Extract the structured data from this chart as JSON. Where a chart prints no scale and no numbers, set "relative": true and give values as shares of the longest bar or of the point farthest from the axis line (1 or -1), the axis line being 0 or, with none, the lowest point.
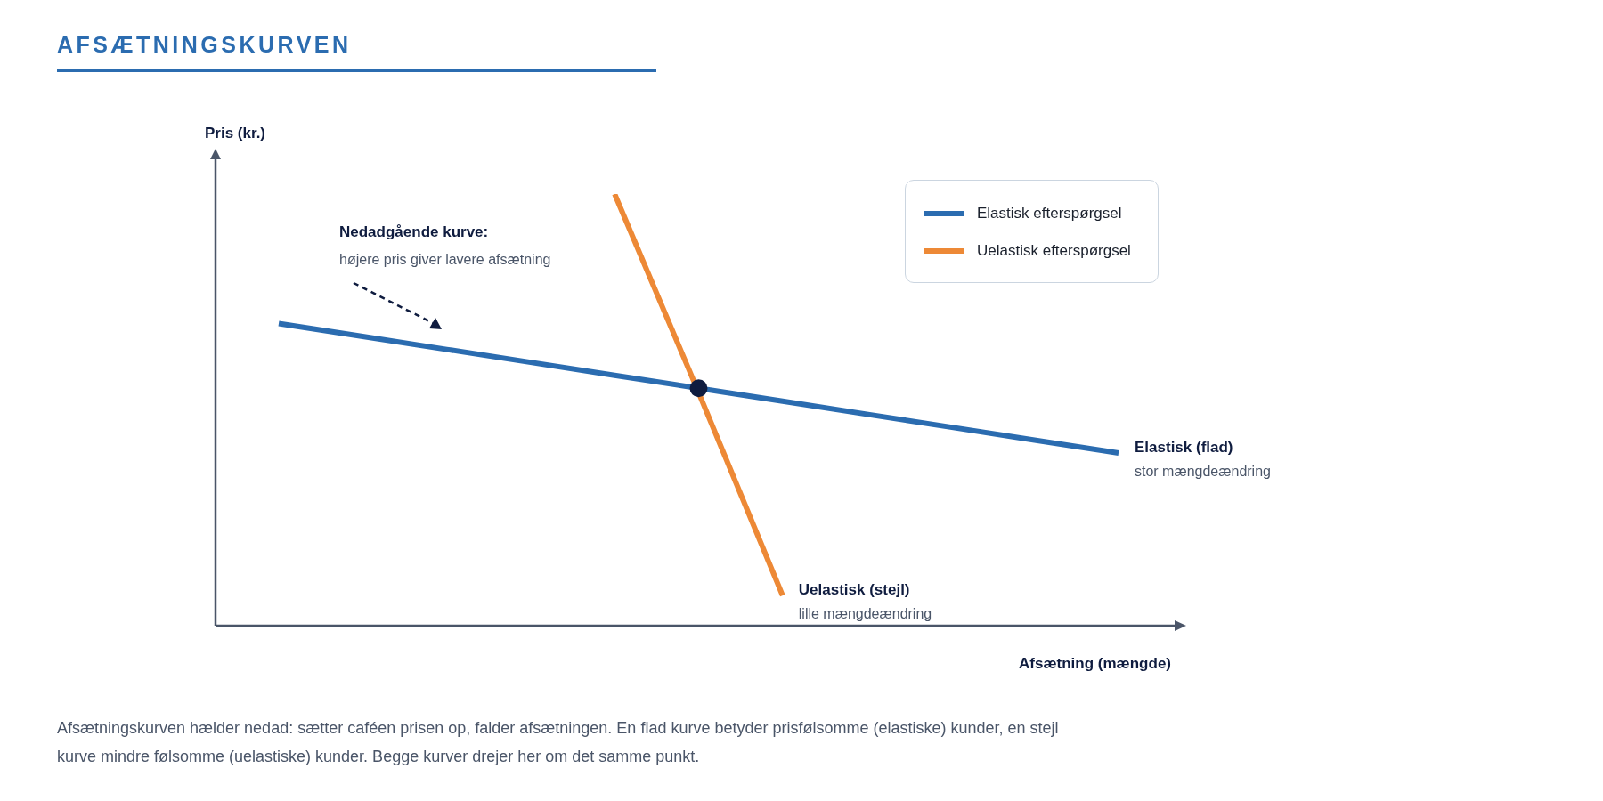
{
  "chart_data": {
    "type": "line",
    "title": "AFSÆTNINGSKURVEN",
    "xlabel": "Afsætning (mængde)",
    "ylabel": "Pris (kr.)",
    "relative": true,
    "legend": "top right",
    "categories": [
      null,
      null,
      null,
      null,
      null,
      null,
      null,
      null,
      null,
      null,
      null
    ],
    "series": [
      {
        "name": "Elastisk efterspørgsel",
        "color": "#2b6cb0",
        "marker": "none",
        "values": [
          0.7,
          0.67,
          0.64,
          0.61,
          0.58,
          0.55,
          0.52,
          0.49,
          0.46,
          0.43,
          0.4
        ]
      },
      {
        "name": "Uelastisk efterspørgsel",
        "color": "#ed8936",
        "marker": "none",
        "values": [
          null,
          null,
          null,
          null,
          1,
          0.54,
          0.07,
          null,
          null,
          null,
          null
        ]
      },
      {
        "color": "#0f1c3f",
        "marker": "circle",
        "values": [
          null,
          null,
          null,
          null,
          null,
          0.55,
          null,
          null,
          null,
          null,
          null
        ]
      }
    ],
    "annotations": [
      "Nedadgående kurve:\nhøjere pris giver lavere afsætning",
      "Elastisk (flad)\nstor mængdeændring",
      "Uelastisk (stejl)\nlille mængdeændring",
      "Afsætningskurven hælder nedad: sætter caféen prisen op, falder afsætningen. En flad kurve betyder prisfølsomme (elastiske) kunder, en stejl kurve mindre følsomme (uelastiske) kunder. Begge kurver drejer her om det samme punkt."
    ]
  }
}
